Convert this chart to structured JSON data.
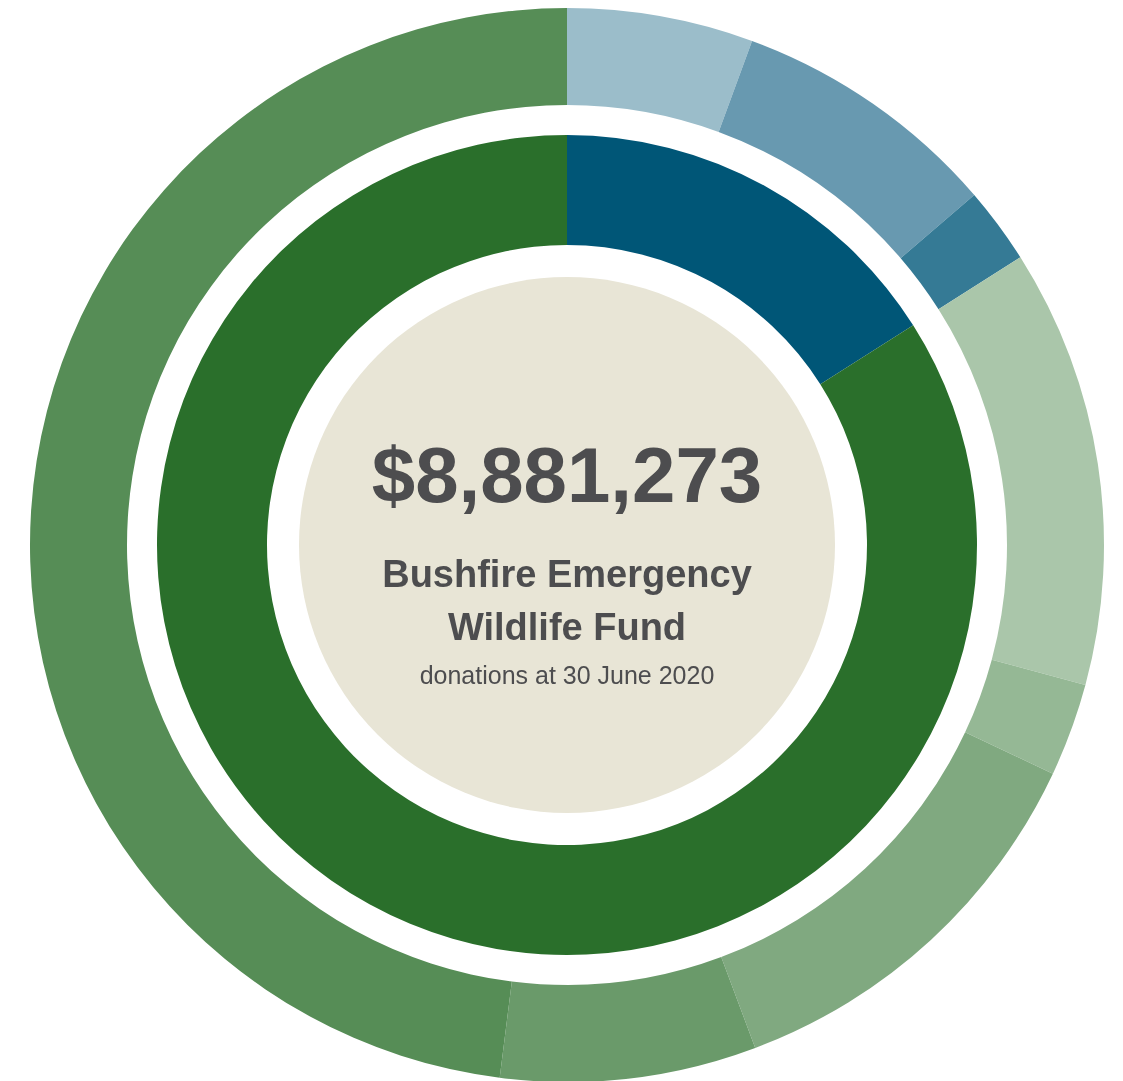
{
  "chart_data": [
    {
      "type": "donut",
      "title": "$8,881,273",
      "subtitle": "Bushfire Emergency Wildlife Fund",
      "annotations": [
        "donations at 30 June 2020"
      ],
      "categories": [
        null,
        null
      ],
      "values": [
        16.0,
        84.0
      ],
      "colors": [
        "#005677",
        "#2a6f2b"
      ]
    },
    {
      "type": "donut",
      "categories": [
        null,
        null,
        null,
        null,
        null,
        null,
        null,
        null
      ],
      "values": [
        5.6,
        8.1,
        2.3,
        13.2,
        2.8,
        12.3,
        7.7,
        48.0
      ],
      "colors": [
        "#9bbdca",
        "#6899b0",
        "#357a95",
        "#aac6aa",
        "#95b895",
        "#80a980",
        "#6a9a6a",
        "#568d56"
      ]
    }
  ]
}
